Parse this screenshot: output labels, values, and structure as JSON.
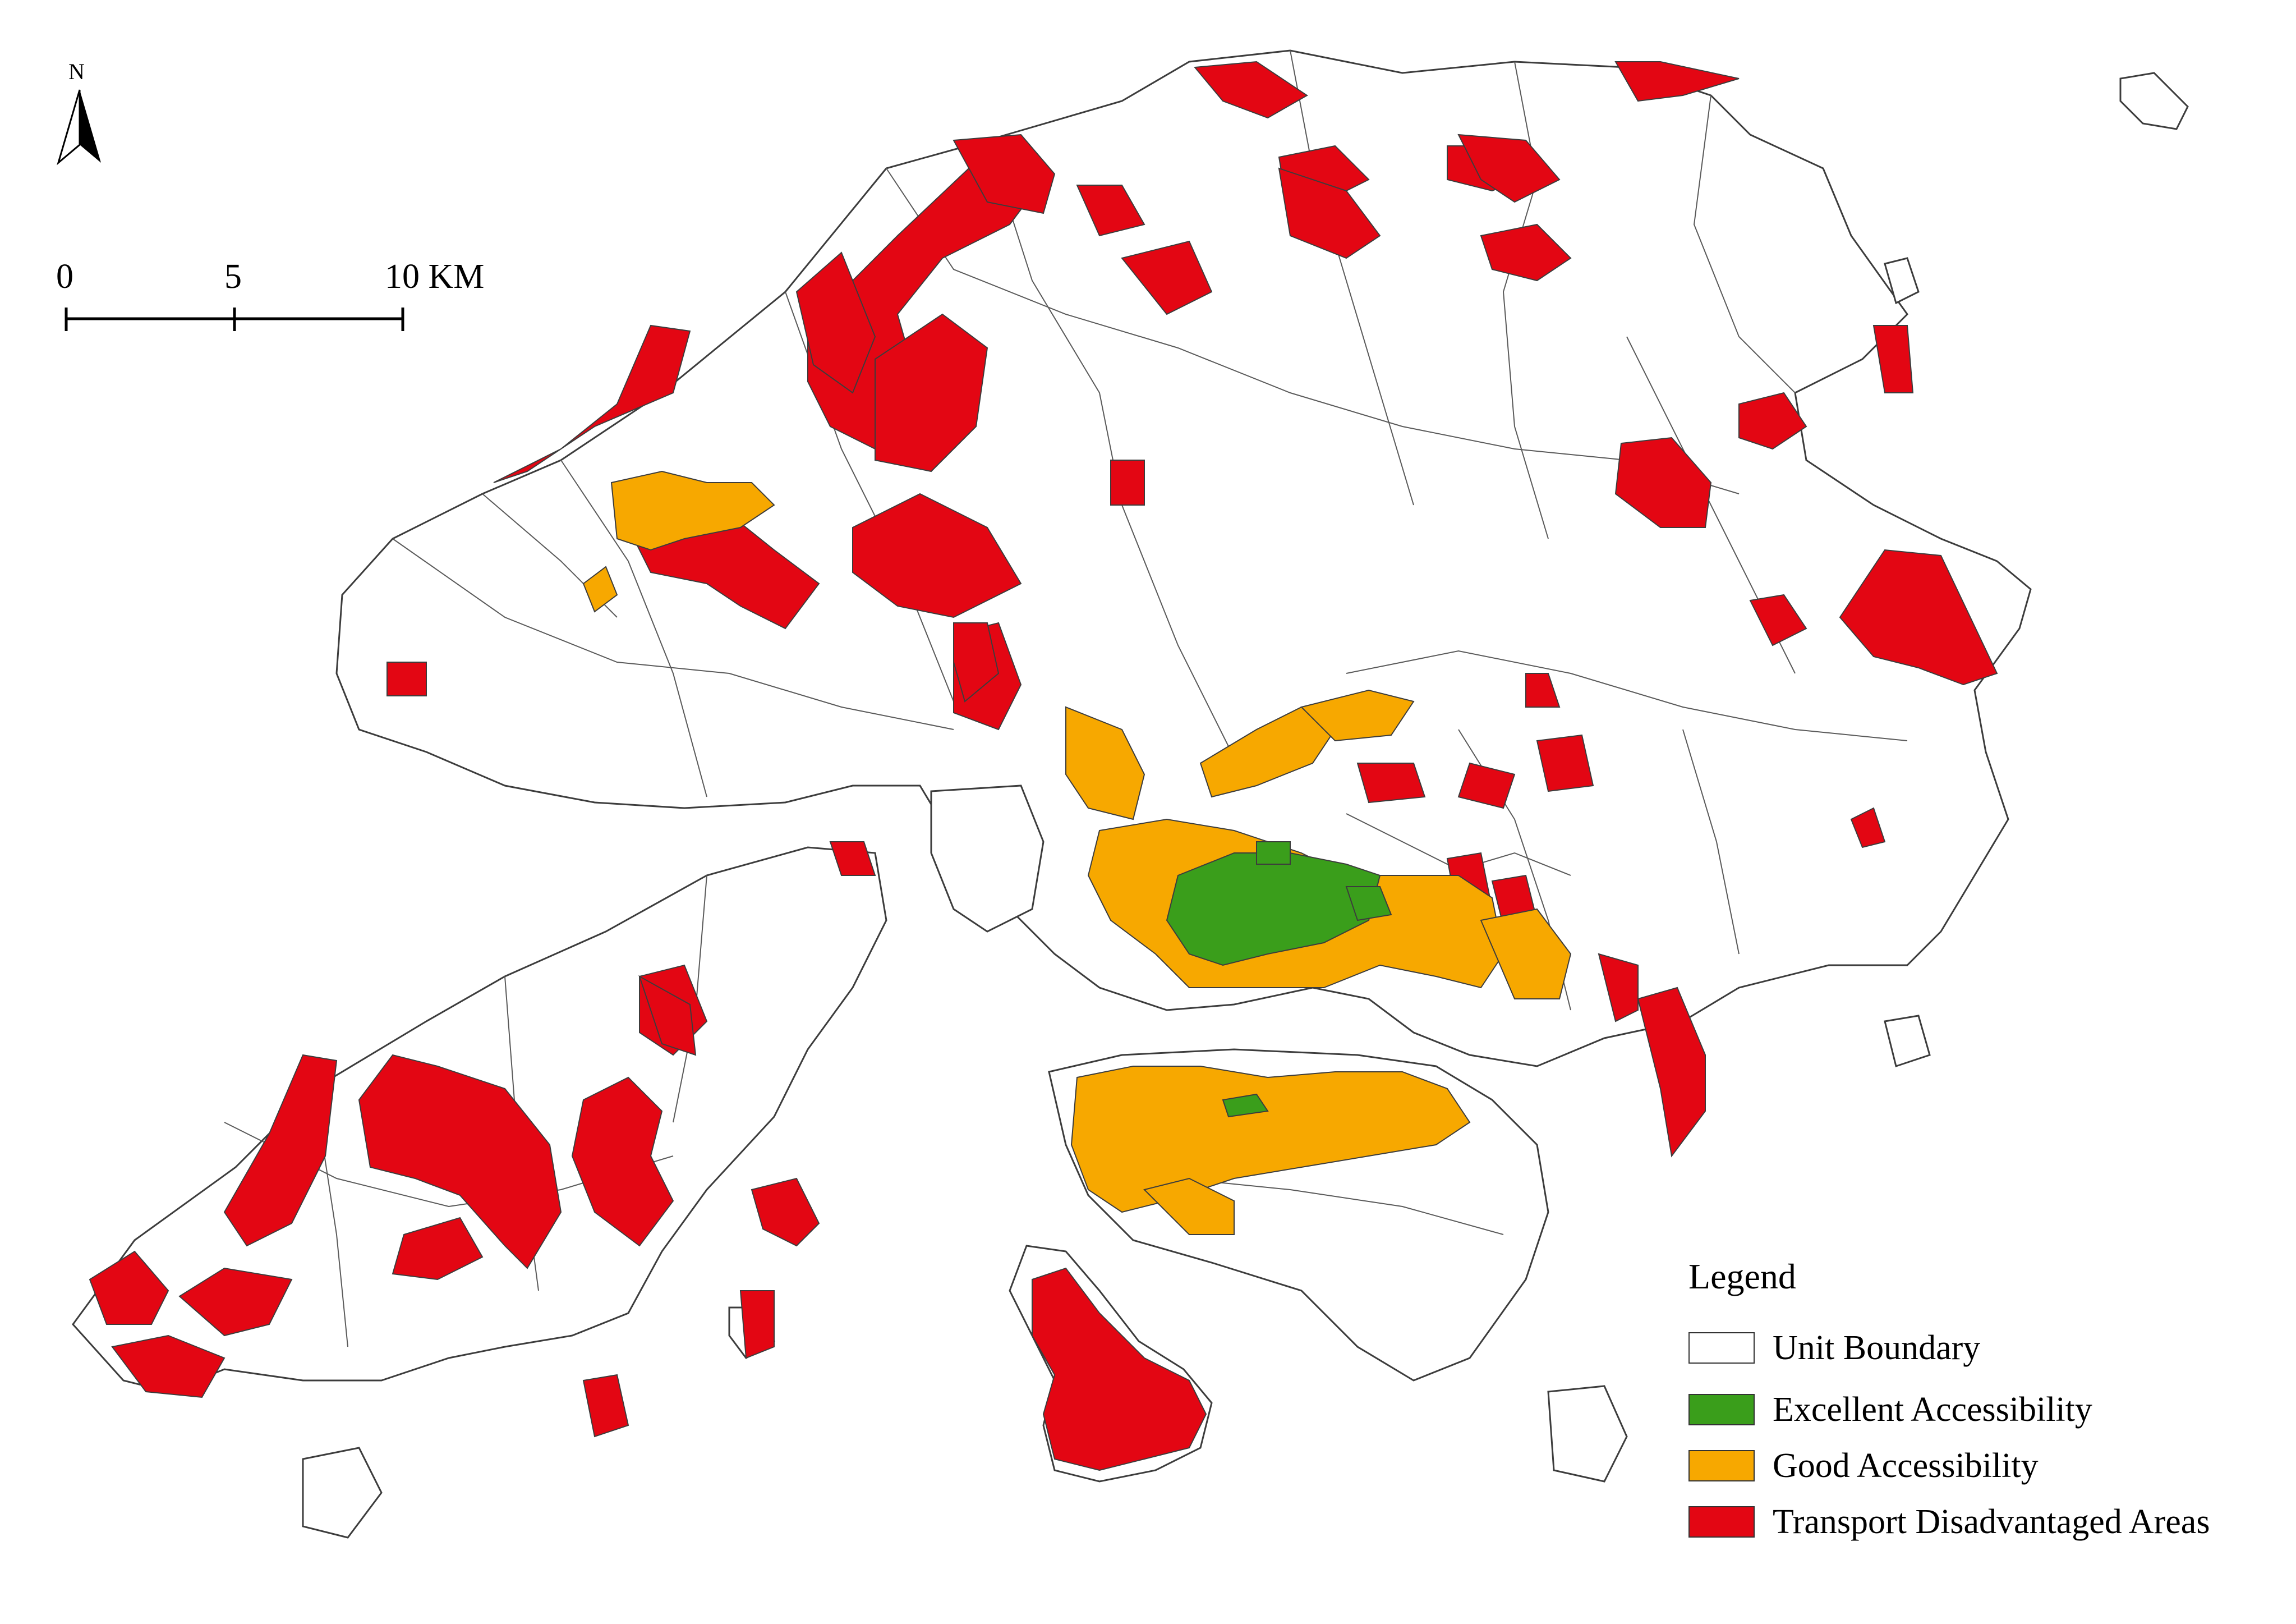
{
  "north_arrow": {
    "label": "N"
  },
  "scale_bar": {
    "ticks": [
      "0",
      "5",
      "10 KM"
    ]
  },
  "legend": {
    "title": "Legend",
    "items": [
      {
        "key": "boundary",
        "label": "Unit Boundary",
        "color": "#ffffff"
      },
      {
        "key": "excellent",
        "label": "Excellent Accessibility",
        "color": "#3a9e1b"
      },
      {
        "key": "good",
        "label": "Good Accessibility",
        "color": "#f7a800"
      },
      {
        "key": "disadvantaged",
        "label": "Transport Disadvantaged Areas",
        "color": "#e30613"
      }
    ]
  },
  "colors": {
    "boundary_stroke": "#3c3c3c",
    "land_fill": "#ffffff"
  }
}
